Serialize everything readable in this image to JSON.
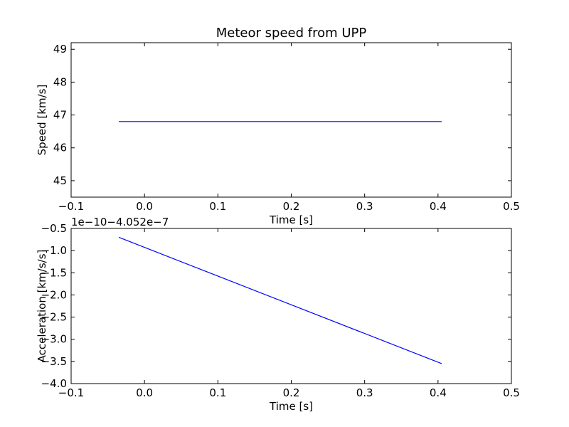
{
  "chart_data": [
    {
      "type": "line",
      "title": "Meteor speed from  UPP",
      "xlabel": "Time [s]",
      "ylabel": "Speed [km/s]",
      "xlim": [
        -0.1,
        0.5
      ],
      "ylim": [
        44.5,
        49.2
      ],
      "xticks": [
        -0.1,
        0.0,
        0.1,
        0.2,
        0.3,
        0.4,
        0.5
      ],
      "xtick_labels": [
        "−0.1",
        "0.0",
        "0.1",
        "0.2",
        "0.3",
        "0.4",
        "0.5"
      ],
      "yticks": [
        45,
        46,
        47,
        48,
        49
      ],
      "ytick_labels": [
        "45",
        "46",
        "47",
        "48",
        "49"
      ],
      "offset_text": "",
      "grid": false,
      "color": "#0000ff",
      "series": [
        {
          "x": [
            -0.035,
            0.405
          ],
          "y": [
            46.8,
            46.8
          ]
        }
      ]
    },
    {
      "type": "line",
      "title": "",
      "xlabel": "Time [s]",
      "ylabel": "Acceleration [km/s/s]",
      "xlim": [
        -0.1,
        0.5
      ],
      "ylim": [
        -4.0,
        -0.5
      ],
      "xticks": [
        -0.1,
        0.0,
        0.1,
        0.2,
        0.3,
        0.4,
        0.5
      ],
      "xtick_labels": [
        "−0.1",
        "0.0",
        "0.1",
        "0.2",
        "0.3",
        "0.4",
        "0.5"
      ],
      "yticks": [
        -4.0,
        -3.5,
        -3.0,
        -2.5,
        -2.0,
        -1.5,
        -1.0,
        -0.5
      ],
      "ytick_labels": [
        "−4.0",
        "−3.5",
        "−3.0",
        "−2.5",
        "−2.0",
        "−1.5",
        "−1.0",
        "−0.5"
      ],
      "offset_text": "1e−10−4.052e−7",
      "grid": false,
      "color": "#0000ff",
      "series": [
        {
          "x": [
            -0.035,
            0.405
          ],
          "y": [
            -0.7,
            -3.55
          ]
        }
      ]
    }
  ]
}
